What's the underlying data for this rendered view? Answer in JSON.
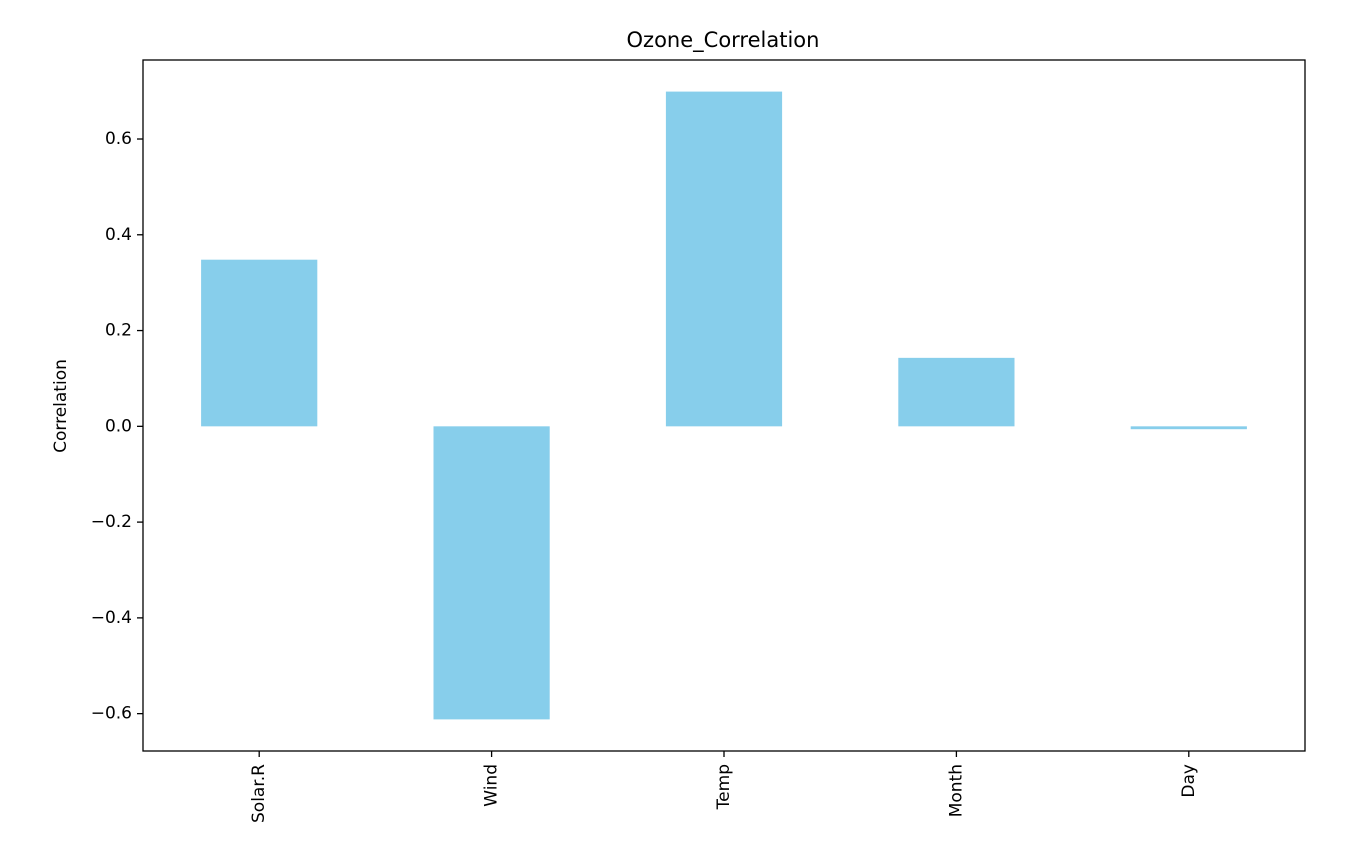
{
  "chart_data": {
    "type": "bar",
    "title": "Ozone_Correlation",
    "xlabel": "",
    "ylabel": "Correlation",
    "categories": [
      "Solar.R",
      "Wind",
      "Temp",
      "Month",
      "Day"
    ],
    "values": [
      0.348,
      -0.612,
      0.699,
      0.143,
      -0.006
    ],
    "ylim": [
      -0.678,
      0.765
    ],
    "yticks": [
      -0.6,
      -0.4,
      -0.2,
      0.0,
      0.2,
      0.4,
      0.6
    ],
    "ytick_labels": [
      "−0.6",
      "−0.4",
      "−0.2",
      "0.0",
      "0.2",
      "0.4",
      "0.6"
    ],
    "grid": false,
    "legend": "none",
    "bar_color": "#87ceeb",
    "axis_color": "#000000"
  }
}
